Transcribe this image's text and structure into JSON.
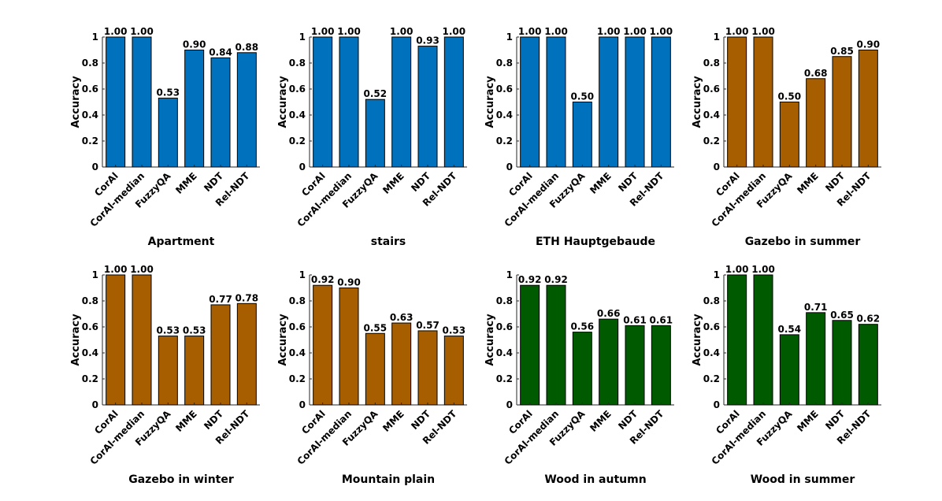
{
  "chart_data": [
    {
      "type": "bar",
      "title": "Apartment",
      "ylabel": "Accuracy",
      "ylim": [
        0,
        1
      ],
      "yticks": [
        "0",
        "0.2",
        "0.4",
        "0.6",
        "0.8",
        "1"
      ],
      "categories": [
        "CorAl",
        "CorAl-median",
        "FuzzyQA",
        "MME",
        "NDT",
        "Rel-NDT"
      ],
      "values": [
        1.0,
        1.0,
        0.53,
        0.9,
        0.84,
        0.88
      ],
      "value_labels": [
        "1.00",
        "1.00",
        "0.53",
        "0.90",
        "0.84",
        "0.88"
      ],
      "color": "#0072bd"
    },
    {
      "type": "bar",
      "title": "stairs",
      "ylabel": "Accuracy",
      "ylim": [
        0,
        1
      ],
      "yticks": [
        "0",
        "0.2",
        "0.4",
        "0.6",
        "0.8",
        "1"
      ],
      "categories": [
        "CorAl",
        "CorAl-median",
        "FuzzyQA",
        "MME",
        "NDT",
        "Rel-NDT"
      ],
      "values": [
        1.0,
        1.0,
        0.52,
        1.0,
        0.93,
        1.0
      ],
      "value_labels": [
        "1.00",
        "1.00",
        "0.52",
        "1.00",
        "0.93",
        "1.00"
      ],
      "color": "#0072bd"
    },
    {
      "type": "bar",
      "title": "ETH Hauptgebaude",
      "ylabel": "Accuracy",
      "ylim": [
        0,
        1
      ],
      "yticks": [
        "0",
        "0.2",
        "0.4",
        "0.6",
        "0.8",
        "1"
      ],
      "categories": [
        "CorAl",
        "CorAl-median",
        "FuzzyQA",
        "MME",
        "NDT",
        "Rel-NDT"
      ],
      "values": [
        1.0,
        1.0,
        0.5,
        1.0,
        1.0,
        1.0
      ],
      "value_labels": [
        "1.00",
        "1.00",
        "0.50",
        "1.00",
        "1.00",
        "1.00"
      ],
      "color": "#0072bd"
    },
    {
      "type": "bar",
      "title": "Gazebo in summer",
      "ylabel": "Accuracy",
      "ylim": [
        0,
        1
      ],
      "yticks": [
        "0",
        "0.2",
        "0.4",
        "0.6",
        "0.8",
        "1"
      ],
      "categories": [
        "CorAl",
        "CorAl-median",
        "FuzzyQA",
        "MME",
        "NDT",
        "Rel-NDT"
      ],
      "values": [
        1.0,
        1.0,
        0.5,
        0.68,
        0.85,
        0.9
      ],
      "value_labels": [
        "1.00",
        "1.00",
        "0.50",
        "0.68",
        "0.85",
        "0.90"
      ],
      "color": "#a65e00"
    },
    {
      "type": "bar",
      "title": "Gazebo in winter",
      "ylabel": "Accuracy",
      "ylim": [
        0,
        1
      ],
      "yticks": [
        "0",
        "0.2",
        "0.4",
        "0.6",
        "0.8",
        "1"
      ],
      "categories": [
        "CorAl",
        "CorAl-median",
        "FuzzyQA",
        "MME",
        "NDT",
        "Rel-NDT"
      ],
      "values": [
        1.0,
        1.0,
        0.53,
        0.53,
        0.77,
        0.78
      ],
      "value_labels": [
        "1.00",
        "1.00",
        "0.53",
        "0.53",
        "0.77",
        "0.78"
      ],
      "color": "#a65e00"
    },
    {
      "type": "bar",
      "title": "Mountain plain",
      "ylabel": "Accuracy",
      "ylim": [
        0,
        1
      ],
      "yticks": [
        "0",
        "0.2",
        "0.4",
        "0.6",
        "0.8",
        "1"
      ],
      "categories": [
        "CorAl",
        "CorAl-median",
        "FuzzyQA",
        "MME",
        "NDT",
        "Rel-NDT"
      ],
      "values": [
        0.92,
        0.9,
        0.55,
        0.63,
        0.57,
        0.53
      ],
      "value_labels": [
        "0.92",
        "0.90",
        "0.55",
        "0.63",
        "0.57",
        "0.53"
      ],
      "color": "#a65e00"
    },
    {
      "type": "bar",
      "title": "Wood in autumn",
      "ylabel": "Accuracy",
      "ylim": [
        0,
        1
      ],
      "yticks": [
        "0",
        "0.2",
        "0.4",
        "0.6",
        "0.8",
        "1"
      ],
      "categories": [
        "CorAl",
        "CorAl-median",
        "FuzzyQA",
        "MME",
        "NDT",
        "Rel-NDT"
      ],
      "values": [
        0.92,
        0.92,
        0.56,
        0.66,
        0.61,
        0.61
      ],
      "value_labels": [
        "0.92",
        "0.92",
        "0.56",
        "0.66",
        "0.61",
        "0.61"
      ],
      "color": "#005a00"
    },
    {
      "type": "bar",
      "title": "Wood in summer",
      "ylabel": "Accuracy",
      "ylim": [
        0,
        1
      ],
      "yticks": [
        "0",
        "0.2",
        "0.4",
        "0.6",
        "0.8",
        "1"
      ],
      "categories": [
        "CorAl",
        "CorAl-median",
        "FuzzyQA",
        "MME",
        "NDT",
        "Rel-NDT"
      ],
      "values": [
        1.0,
        1.0,
        0.54,
        0.71,
        0.65,
        0.62
      ],
      "value_labels": [
        "1.00",
        "1.00",
        "0.54",
        "0.71",
        "0.65",
        "0.62"
      ],
      "color": "#005a00"
    }
  ]
}
